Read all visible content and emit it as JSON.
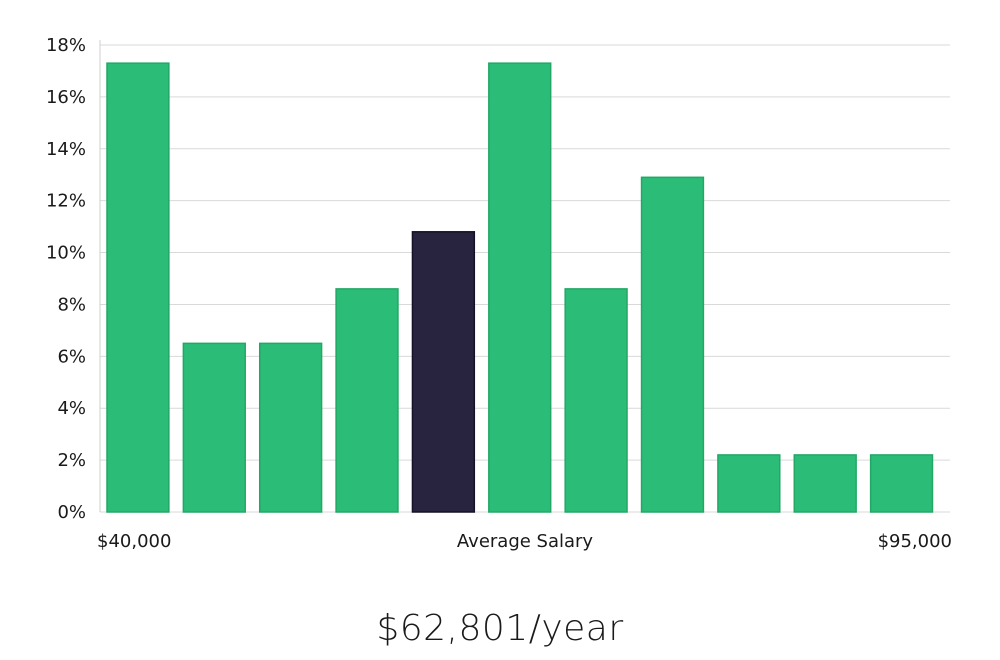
{
  "chart_data": {
    "type": "bar",
    "categories": [
      "1",
      "2",
      "3",
      "4",
      "5",
      "6",
      "7",
      "8",
      "9",
      "10",
      "11"
    ],
    "values": [
      17.3,
      6.5,
      6.5,
      8.6,
      10.8,
      17.3,
      8.6,
      12.9,
      2.2,
      2.2,
      2.2
    ],
    "highlight_index": 4,
    "ylim": [
      0,
      18
    ],
    "y_ticks": [
      0,
      2,
      4,
      6,
      8,
      10,
      12,
      14,
      16,
      18
    ],
    "y_tick_labels": [
      "0%",
      "2%",
      "4%",
      "6%",
      "8%",
      "10%",
      "12%",
      "14%",
      "16%",
      "18%"
    ],
    "x_labels": {
      "left": "$40,000",
      "center": "Average Salary",
      "right": "$95,000"
    },
    "grid": true,
    "colors": {
      "bar": "#2bbd77",
      "bar_stroke": "#22a866",
      "highlight": "#28243f",
      "highlight_stroke": "#141226"
    }
  },
  "caption": "$62,801/year"
}
